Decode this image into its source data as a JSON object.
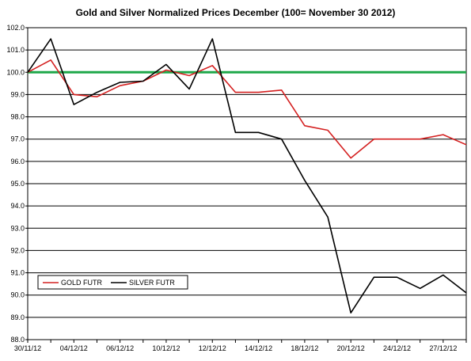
{
  "chart_data": {
    "type": "line",
    "title": "Gold and Silver Normalized Prices December (100= November 30 2012)",
    "xlabel": "",
    "ylabel": "",
    "ylim": [
      88.0,
      102.0
    ],
    "ytick_step": 1.0,
    "ytick_labels": [
      "88.0",
      "89.0",
      "90.0",
      "91.0",
      "92.0",
      "93.0",
      "94.0",
      "95.0",
      "96.0",
      "97.0",
      "98.0",
      "99.0",
      "100.0",
      "101.0",
      "102.0"
    ],
    "x": [
      "30/11/12",
      "03/12/12",
      "04/12/12",
      "05/12/12",
      "06/12/12",
      "07/12/12",
      "10/12/12",
      "11/12/12",
      "12/12/12",
      "13/12/12",
      "14/12/12",
      "17/12/12",
      "18/12/12",
      "19/12/12",
      "20/12/12",
      "21/12/12",
      "24/12/12",
      "26/12/12",
      "27/12/12",
      "28/12/12"
    ],
    "x_tick_labels": [
      "30/11/12",
      "04/12/12",
      "06/12/12",
      "10/12/12",
      "12/12/12",
      "14/12/12",
      "18/12/12",
      "20/12/12",
      "24/12/12",
      "27/12/12"
    ],
    "grid": true,
    "legend_position": "bottom-left",
    "baseline": {
      "value": 100.0,
      "color": "#1fa84a"
    },
    "series": [
      {
        "name": "GOLD  FUTR",
        "color": "#d42020",
        "values": [
          100.0,
          100.55,
          99.0,
          98.9,
          99.4,
          99.6,
          100.1,
          99.85,
          100.3,
          99.1,
          99.1,
          99.2,
          97.6,
          97.4,
          96.15,
          97.0,
          97.0,
          97.0,
          97.2,
          96.75
        ]
      },
      {
        "name": "SILVER  FUTR",
        "color": "#000000",
        "values": [
          100.0,
          101.5,
          98.55,
          99.1,
          99.55,
          99.6,
          100.35,
          99.25,
          101.5,
          97.3,
          97.3,
          97.0,
          95.15,
          93.5,
          89.2,
          90.8,
          90.8,
          90.3,
          90.9,
          90.1
        ]
      }
    ]
  }
}
